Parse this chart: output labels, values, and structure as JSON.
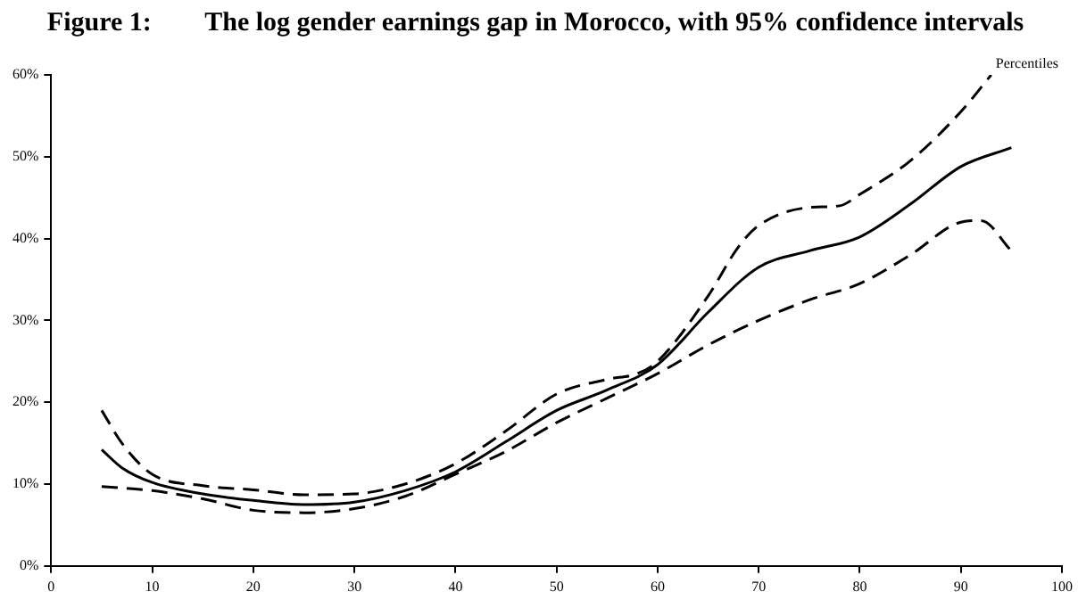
{
  "chart_data": {
    "type": "line",
    "title": "Figure 1:        The log gender earnings gap in Morocco, with 95% confidence intervals",
    "xlabel": "Percentiles",
    "xlim": [
      0,
      100
    ],
    "xticks": [
      0,
      10,
      20,
      30,
      40,
      50,
      60,
      70,
      80,
      90,
      100
    ],
    "ylim": [
      0,
      60
    ],
    "yticks": [
      {
        "value": 0,
        "label": "0%"
      },
      {
        "value": 10,
        "label": "10%"
      },
      {
        "value": 20,
        "label": "20%"
      },
      {
        "value": 30,
        "label": "30%"
      },
      {
        "value": 40,
        "label": "40%"
      },
      {
        "value": 50,
        "label": "50%"
      },
      {
        "value": 60,
        "label": "60%"
      }
    ],
    "grid": false,
    "legend": false,
    "marker": "none",
    "series": [
      {
        "color": "#000000",
        "line_style": "solid",
        "x": [
          5,
          7,
          10,
          15,
          20,
          25,
          30,
          35,
          40,
          45,
          50,
          55,
          60,
          65,
          70,
          75,
          80,
          85,
          90,
          95
        ],
        "values": [
          14.2,
          12,
          10.2,
          8.8,
          8,
          7.5,
          7.8,
          9.2,
          11.5,
          15.2,
          19,
          21.5,
          24.6,
          31,
          36.5,
          38.5,
          40.2,
          44.2,
          48.8,
          51.1
        ]
      },
      {
        "color": "#000000",
        "line_style": "dashed",
        "x": [
          5,
          7,
          10,
          15,
          20,
          25,
          30,
          35,
          40,
          45,
          50,
          55,
          58,
          60,
          65,
          68,
          70,
          75,
          78,
          80,
          85,
          90,
          93
        ],
        "values": [
          19,
          15,
          11.2,
          9.8,
          9.3,
          8.7,
          8.8,
          10,
          12.5,
          16.5,
          21,
          22.8,
          23.5,
          25,
          33,
          39,
          41.6,
          43.8,
          44,
          45.4,
          49.5,
          55.5,
          60
        ]
      },
      {
        "color": "#000000",
        "line_style": "dashed",
        "x": [
          5,
          10,
          15,
          20,
          25,
          30,
          35,
          40,
          45,
          50,
          55,
          60,
          65,
          70,
          75,
          80,
          85,
          90,
          92,
          95
        ],
        "values": [
          9.7,
          9.2,
          8.2,
          6.8,
          6.5,
          7,
          8.5,
          11.2,
          14,
          17.5,
          20.5,
          23.5,
          27,
          30,
          32.5,
          34.5,
          38,
          42,
          42.2,
          38.5
        ]
      }
    ]
  }
}
